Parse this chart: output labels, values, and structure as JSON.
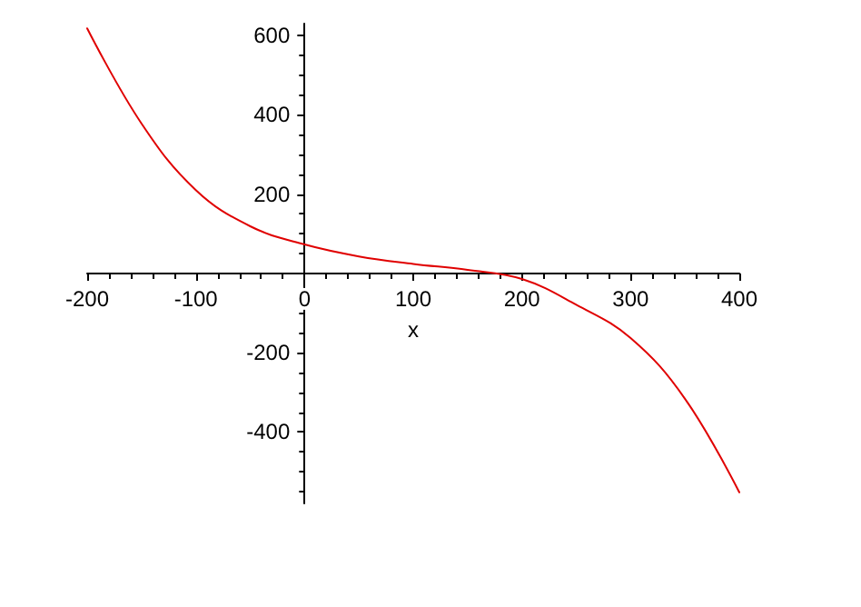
{
  "chart_data": {
    "type": "line",
    "xlabel": "x",
    "x": [
      -200,
      -150,
      -100,
      -50,
      0,
      50,
      100,
      150,
      200,
      250,
      300,
      350,
      400
    ],
    "series": [
      {
        "color": "#e00000",
        "values": [
          618,
          378,
          210,
          119,
          73,
          43,
          24,
          9,
          -14,
          -79,
          -163,
          -316,
          -552
        ]
      }
    ],
    "xlim": [
      -200,
      400
    ],
    "xticks": [
      -200,
      -100,
      0,
      100,
      200,
      300,
      400
    ],
    "ylim": [
      -580,
      630
    ],
    "yticks": [
      -400,
      -200,
      200,
      400,
      600
    ],
    "marker": "none",
    "line_style": "solid"
  }
}
